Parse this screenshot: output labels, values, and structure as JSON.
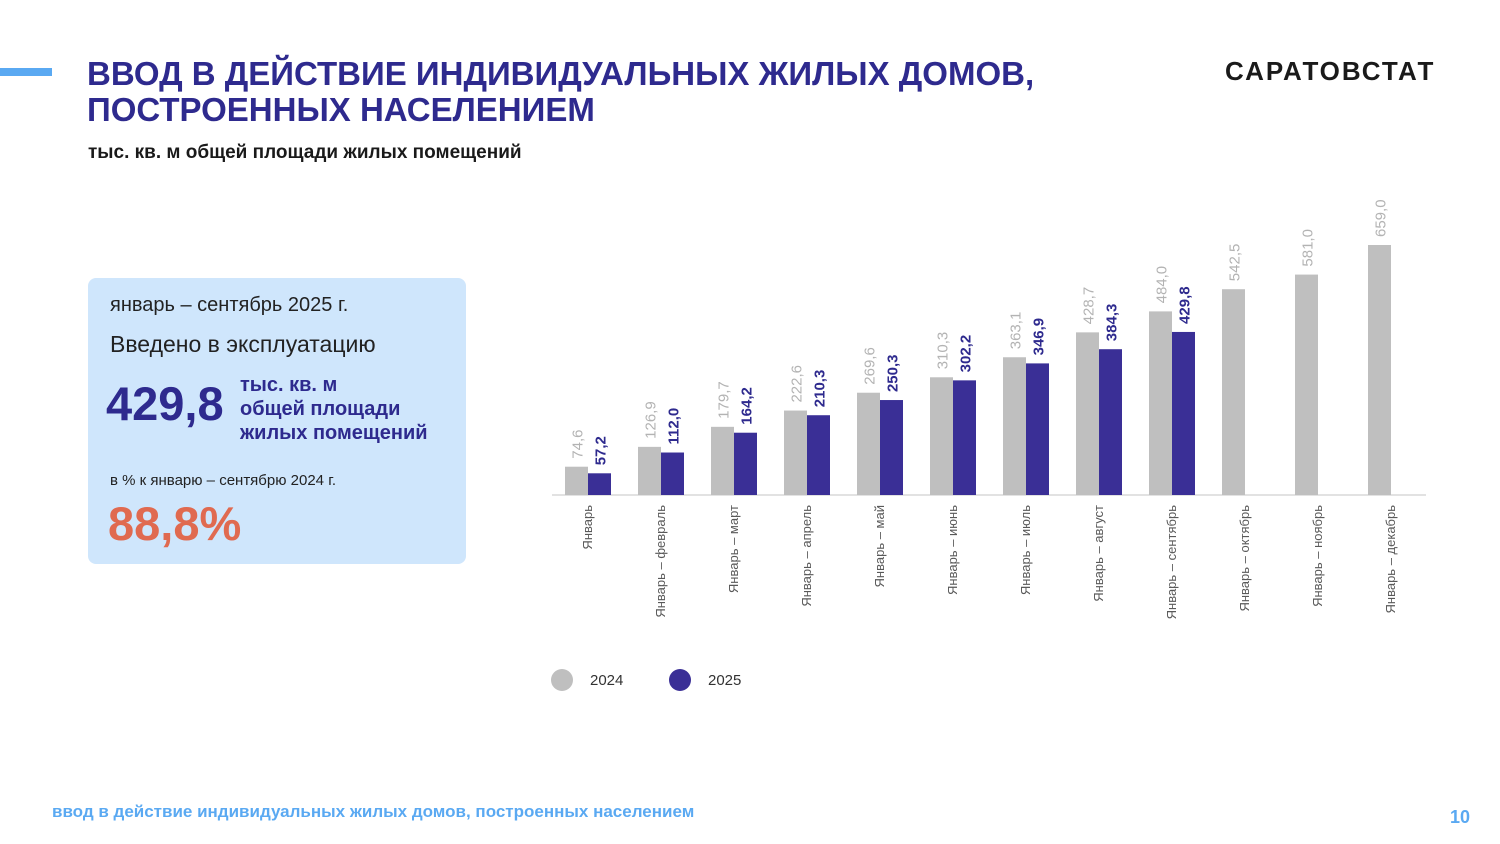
{
  "header": {
    "title_line1": "ВВОД В ДЕЙСТВИЕ ИНДИВИДУАЛЬНЫХ ЖИЛЫХ ДОМОВ,",
    "title_line2": "ПОСТРОЕННЫХ НАСЕЛЕНИЕМ",
    "brand": "САРАТОВСТАТ",
    "subtitle": "тыс. кв. м общей площади жилых помещений"
  },
  "card": {
    "period": "январь – сентябрь 2025 г.",
    "label": "Введено в эксплуатацию",
    "value": "429,8",
    "unit_line1": "тыс. кв. м",
    "unit_line2": "общей площади",
    "unit_line3": "жилых помещений",
    "compare_label": "в % к январю – сентябрю 2024 г.",
    "percent": "88,8%"
  },
  "colors": {
    "title": "#2e2a8e",
    "series_2024": "#bfbfbf",
    "series_2025": "#3a2f96",
    "label_2024": "#b3b3b3",
    "label_2025": "#2e2a8e",
    "percent": "#e06a50",
    "accent": "#5aa9f2"
  },
  "chart_data": {
    "type": "bar",
    "title": "",
    "xlabel": "",
    "ylabel": "",
    "ylim": [
      0,
      700
    ],
    "grid": false,
    "legend_position": "bottom",
    "categories": [
      "Январь",
      "Январь – февраль",
      "Январь – март",
      "Январь – апрель",
      "Январь – май",
      "Январь – июнь",
      "Январь – июль",
      "Январь – август",
      "Январь – сентябрь",
      "Январь – октябрь",
      "Январь – ноябрь",
      "Январь – декабрь"
    ],
    "series": [
      {
        "name": "2024",
        "values": [
          74.6,
          126.9,
          179.7,
          222.6,
          269.6,
          310.3,
          363.1,
          428.7,
          484.0,
          542.5,
          581.0,
          659.0
        ],
        "labels": [
          "74,6",
          "126,9",
          "179,7",
          "222,6",
          "269,6",
          "310,3",
          "363,1",
          "428,7",
          "484,0",
          "542,5",
          "581,0",
          "659,0"
        ]
      },
      {
        "name": "2025",
        "values": [
          57.2,
          112.0,
          164.2,
          210.3,
          250.3,
          302.2,
          346.9,
          384.3,
          429.8,
          null,
          null,
          null
        ],
        "labels": [
          "57,2",
          "112,0",
          "164,2",
          "210,3",
          "250,3",
          "302,2",
          "346,9",
          "384,3",
          "429,8",
          null,
          null,
          null
        ]
      }
    ]
  },
  "footer": {
    "text": "ввод в действие индивидуальных жилых домов, построенных населением",
    "page": "10"
  }
}
